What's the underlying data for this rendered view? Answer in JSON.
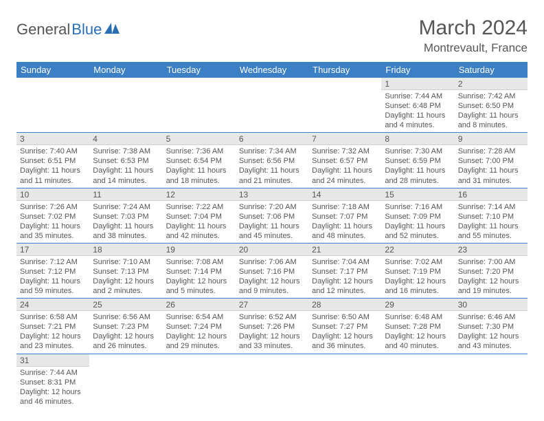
{
  "brand": {
    "part1": "General",
    "part2": "Blue"
  },
  "title": "March 2024",
  "location": "Montrevault, France",
  "colors": {
    "header_bg": "#3b7fc4",
    "header_fg": "#ffffff",
    "daynum_bg": "#e7e7e7",
    "row_border": "#3b7fc4",
    "text": "#555555",
    "brand_accent": "#2a6fb5"
  },
  "weekdays": [
    "Sunday",
    "Monday",
    "Tuesday",
    "Wednesday",
    "Thursday",
    "Friday",
    "Saturday"
  ],
  "weeks": [
    [
      null,
      null,
      null,
      null,
      null,
      {
        "n": "1",
        "sr": "Sunrise: 7:44 AM",
        "ss": "Sunset: 6:48 PM",
        "d1": "Daylight: 11 hours",
        "d2": "and 4 minutes."
      },
      {
        "n": "2",
        "sr": "Sunrise: 7:42 AM",
        "ss": "Sunset: 6:50 PM",
        "d1": "Daylight: 11 hours",
        "d2": "and 8 minutes."
      }
    ],
    [
      {
        "n": "3",
        "sr": "Sunrise: 7:40 AM",
        "ss": "Sunset: 6:51 PM",
        "d1": "Daylight: 11 hours",
        "d2": "and 11 minutes."
      },
      {
        "n": "4",
        "sr": "Sunrise: 7:38 AM",
        "ss": "Sunset: 6:53 PM",
        "d1": "Daylight: 11 hours",
        "d2": "and 14 minutes."
      },
      {
        "n": "5",
        "sr": "Sunrise: 7:36 AM",
        "ss": "Sunset: 6:54 PM",
        "d1": "Daylight: 11 hours",
        "d2": "and 18 minutes."
      },
      {
        "n": "6",
        "sr": "Sunrise: 7:34 AM",
        "ss": "Sunset: 6:56 PM",
        "d1": "Daylight: 11 hours",
        "d2": "and 21 minutes."
      },
      {
        "n": "7",
        "sr": "Sunrise: 7:32 AM",
        "ss": "Sunset: 6:57 PM",
        "d1": "Daylight: 11 hours",
        "d2": "and 24 minutes."
      },
      {
        "n": "8",
        "sr": "Sunrise: 7:30 AM",
        "ss": "Sunset: 6:59 PM",
        "d1": "Daylight: 11 hours",
        "d2": "and 28 minutes."
      },
      {
        "n": "9",
        "sr": "Sunrise: 7:28 AM",
        "ss": "Sunset: 7:00 PM",
        "d1": "Daylight: 11 hours",
        "d2": "and 31 minutes."
      }
    ],
    [
      {
        "n": "10",
        "sr": "Sunrise: 7:26 AM",
        "ss": "Sunset: 7:02 PM",
        "d1": "Daylight: 11 hours",
        "d2": "and 35 minutes."
      },
      {
        "n": "11",
        "sr": "Sunrise: 7:24 AM",
        "ss": "Sunset: 7:03 PM",
        "d1": "Daylight: 11 hours",
        "d2": "and 38 minutes."
      },
      {
        "n": "12",
        "sr": "Sunrise: 7:22 AM",
        "ss": "Sunset: 7:04 PM",
        "d1": "Daylight: 11 hours",
        "d2": "and 42 minutes."
      },
      {
        "n": "13",
        "sr": "Sunrise: 7:20 AM",
        "ss": "Sunset: 7:06 PM",
        "d1": "Daylight: 11 hours",
        "d2": "and 45 minutes."
      },
      {
        "n": "14",
        "sr": "Sunrise: 7:18 AM",
        "ss": "Sunset: 7:07 PM",
        "d1": "Daylight: 11 hours",
        "d2": "and 48 minutes."
      },
      {
        "n": "15",
        "sr": "Sunrise: 7:16 AM",
        "ss": "Sunset: 7:09 PM",
        "d1": "Daylight: 11 hours",
        "d2": "and 52 minutes."
      },
      {
        "n": "16",
        "sr": "Sunrise: 7:14 AM",
        "ss": "Sunset: 7:10 PM",
        "d1": "Daylight: 11 hours",
        "d2": "and 55 minutes."
      }
    ],
    [
      {
        "n": "17",
        "sr": "Sunrise: 7:12 AM",
        "ss": "Sunset: 7:12 PM",
        "d1": "Daylight: 11 hours",
        "d2": "and 59 minutes."
      },
      {
        "n": "18",
        "sr": "Sunrise: 7:10 AM",
        "ss": "Sunset: 7:13 PM",
        "d1": "Daylight: 12 hours",
        "d2": "and 2 minutes."
      },
      {
        "n": "19",
        "sr": "Sunrise: 7:08 AM",
        "ss": "Sunset: 7:14 PM",
        "d1": "Daylight: 12 hours",
        "d2": "and 5 minutes."
      },
      {
        "n": "20",
        "sr": "Sunrise: 7:06 AM",
        "ss": "Sunset: 7:16 PM",
        "d1": "Daylight: 12 hours",
        "d2": "and 9 minutes."
      },
      {
        "n": "21",
        "sr": "Sunrise: 7:04 AM",
        "ss": "Sunset: 7:17 PM",
        "d1": "Daylight: 12 hours",
        "d2": "and 12 minutes."
      },
      {
        "n": "22",
        "sr": "Sunrise: 7:02 AM",
        "ss": "Sunset: 7:19 PM",
        "d1": "Daylight: 12 hours",
        "d2": "and 16 minutes."
      },
      {
        "n": "23",
        "sr": "Sunrise: 7:00 AM",
        "ss": "Sunset: 7:20 PM",
        "d1": "Daylight: 12 hours",
        "d2": "and 19 minutes."
      }
    ],
    [
      {
        "n": "24",
        "sr": "Sunrise: 6:58 AM",
        "ss": "Sunset: 7:21 PM",
        "d1": "Daylight: 12 hours",
        "d2": "and 23 minutes."
      },
      {
        "n": "25",
        "sr": "Sunrise: 6:56 AM",
        "ss": "Sunset: 7:23 PM",
        "d1": "Daylight: 12 hours",
        "d2": "and 26 minutes."
      },
      {
        "n": "26",
        "sr": "Sunrise: 6:54 AM",
        "ss": "Sunset: 7:24 PM",
        "d1": "Daylight: 12 hours",
        "d2": "and 29 minutes."
      },
      {
        "n": "27",
        "sr": "Sunrise: 6:52 AM",
        "ss": "Sunset: 7:26 PM",
        "d1": "Daylight: 12 hours",
        "d2": "and 33 minutes."
      },
      {
        "n": "28",
        "sr": "Sunrise: 6:50 AM",
        "ss": "Sunset: 7:27 PM",
        "d1": "Daylight: 12 hours",
        "d2": "and 36 minutes."
      },
      {
        "n": "29",
        "sr": "Sunrise: 6:48 AM",
        "ss": "Sunset: 7:28 PM",
        "d1": "Daylight: 12 hours",
        "d2": "and 40 minutes."
      },
      {
        "n": "30",
        "sr": "Sunrise: 6:46 AM",
        "ss": "Sunset: 7:30 PM",
        "d1": "Daylight: 12 hours",
        "d2": "and 43 minutes."
      }
    ],
    [
      {
        "n": "31",
        "sr": "Sunrise: 7:44 AM",
        "ss": "Sunset: 8:31 PM",
        "d1": "Daylight: 12 hours",
        "d2": "and 46 minutes."
      },
      null,
      null,
      null,
      null,
      null,
      null
    ]
  ]
}
